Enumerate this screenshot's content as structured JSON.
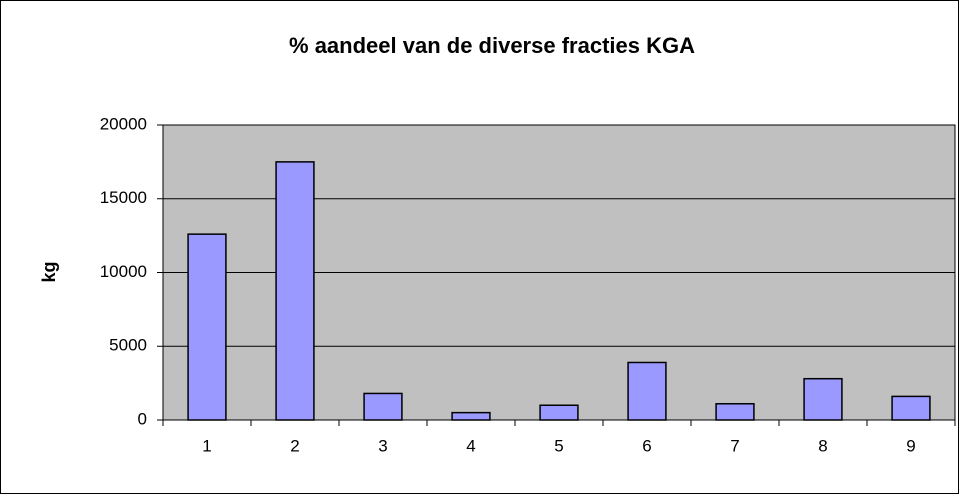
{
  "chart_data": {
    "type": "bar",
    "title": "% aandeel van de diverse fracties KGA",
    "y_label": "kg",
    "categories": [
      "1",
      "2",
      "3",
      "4",
      "5",
      "6",
      "7",
      "8",
      "9"
    ],
    "values": [
      12600,
      17500,
      1800,
      500,
      1000,
      3900,
      1100,
      2800,
      1600
    ],
    "color": "#9999ff",
    "plot_background": "#c0c0c0",
    "ylim": [
      0,
      20000
    ],
    "yticks": [
      0,
      5000,
      10000,
      15000,
      20000
    ],
    "grid": true
  }
}
